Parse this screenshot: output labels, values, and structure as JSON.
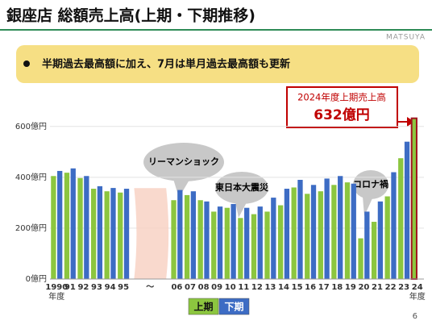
{
  "header": {
    "title": "銀座店 総額売上高(上期・下期推移)",
    "logo": "MATSUYA",
    "bullet": "半期過去最高額に加え、7月は単月過去最高額も更新",
    "page": "6"
  },
  "chart_data": {
    "type": "bar",
    "categories": [
      "1990",
      "91",
      "92",
      "93",
      "94",
      "95",
      "〜",
      "06",
      "07",
      "08",
      "09",
      "10",
      "11",
      "12",
      "13",
      "14",
      "15",
      "16",
      "17",
      "18",
      "19",
      "20",
      "21",
      "22",
      "23",
      "24"
    ],
    "x_label_suffix": "年度",
    "series": [
      {
        "name": "上期",
        "color": "#8cc63f",
        "values": [
          405,
          418,
          397,
          355,
          345,
          340,
          null,
          310,
          330,
          310,
          265,
          280,
          240,
          255,
          265,
          290,
          360,
          335,
          345,
          370,
          380,
          160,
          225,
          325,
          475,
          632
        ]
      },
      {
        "name": "下期",
        "color": "#3d6cc4",
        "values": [
          425,
          435,
          405,
          365,
          358,
          355,
          null,
          350,
          345,
          305,
          285,
          295,
          280,
          285,
          320,
          355,
          390,
          370,
          395,
          405,
          375,
          265,
          305,
          420,
          540,
          null
        ]
      }
    ],
    "ylim": [
      0,
      650
    ],
    "yticks": [
      {
        "value": 0,
        "label": "0億円"
      },
      {
        "value": 200,
        "label": "200億円"
      },
      {
        "value": 400,
        "label": "400億円"
      },
      {
        "value": 600,
        "label": "600億円"
      }
    ],
    "grid": true,
    "highlight": {
      "series": 0,
      "index": 25,
      "color": "#a0141e"
    },
    "annotations": [
      "リーマンショック",
      "東日本大震災",
      "コロナ禍"
    ],
    "callout": {
      "title": "2024年度上期売上高",
      "value": "632億円"
    }
  }
}
